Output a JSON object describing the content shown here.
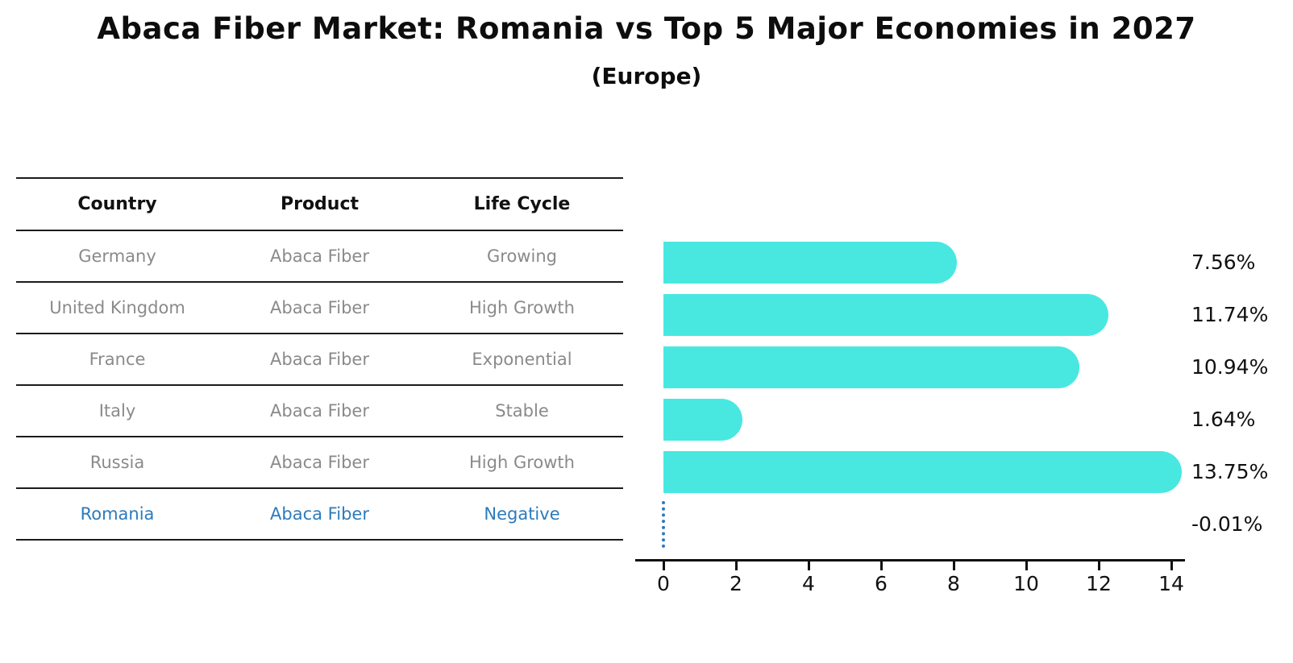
{
  "title": "Abaca Fiber Market: Romania vs Top 5 Major Economies in 2027",
  "subtitle": "(Europe)",
  "table": {
    "headers": [
      "Country",
      "Product",
      "Life Cycle"
    ],
    "rows": [
      {
        "country": "Germany",
        "product": "Abaca Fiber",
        "life_cycle": "Growing",
        "highlight": false
      },
      {
        "country": "United Kingdom",
        "product": "Abaca Fiber",
        "life_cycle": "High Growth",
        "highlight": false
      },
      {
        "country": "France",
        "product": "Abaca Fiber",
        "life_cycle": "Exponential",
        "highlight": false
      },
      {
        "country": "Italy",
        "product": "Abaca Fiber",
        "life_cycle": "Stable",
        "highlight": false
      },
      {
        "country": "Russia",
        "product": "Abaca Fiber",
        "life_cycle": "High Growth",
        "highlight": false
      },
      {
        "country": "Romania",
        "product": "Abaca Fiber",
        "life_cycle": "Negative",
        "highlight": true
      }
    ]
  },
  "chart_data": {
    "type": "bar",
    "orientation": "horizontal",
    "title": "Abaca Fiber Market: Romania vs Top 5 Major Economies in 2027",
    "subtitle": "(Europe)",
    "categories": [
      "Germany",
      "United Kingdom",
      "France",
      "Italy",
      "Russia",
      "Romania"
    ],
    "values": [
      7.56,
      11.74,
      10.94,
      1.64,
      13.75,
      -0.01
    ],
    "value_labels": [
      "7.56%",
      "11.74%",
      "10.94%",
      "1.64%",
      "13.75%",
      "-0.01%"
    ],
    "xlim": [
      0,
      14
    ],
    "x_ticks": [
      0,
      2,
      4,
      6,
      8,
      10,
      12,
      14
    ],
    "x_tick_labels": [
      "0",
      "2",
      "4",
      "6",
      "8",
      "10",
      "12",
      "14"
    ],
    "grid": false,
    "legend": "none",
    "bar_color": "#48e8e1",
    "highlight_color": "#2b7bbd",
    "zero_marker_style": "dotted-vertical-line"
  }
}
